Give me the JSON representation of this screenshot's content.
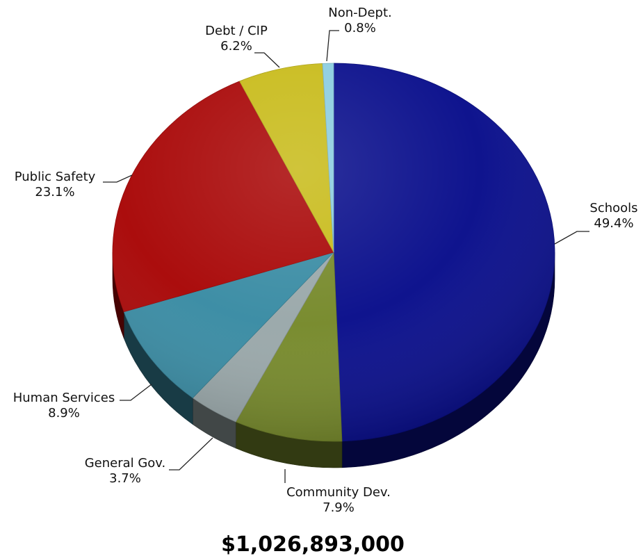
{
  "chart_data": {
    "type": "pie",
    "categories": [
      "Schools",
      "Community Dev.",
      "General Gov.",
      "Human Services",
      "Public Safety",
      "Debt / CIP",
      "Non-Dept."
    ],
    "values": [
      49.4,
      7.9,
      3.7,
      8.9,
      23.1,
      6.2,
      0.8
    ],
    "value_labels": [
      "49.4%",
      "7.9%",
      "3.7%",
      "8.9%",
      "23.1%",
      "6.2%",
      "0.8%"
    ],
    "colors": [
      "#0a0f8c",
      "#778a2c",
      "#9aa8aa",
      "#3a8ca4",
      "#a90808",
      "#c8bb1a",
      "#8ccde0"
    ],
    "start": "12 o'clock",
    "direction": "clockwise",
    "style": "3d tilted",
    "legend": "none",
    "total_label": "$1,026,893,000"
  }
}
